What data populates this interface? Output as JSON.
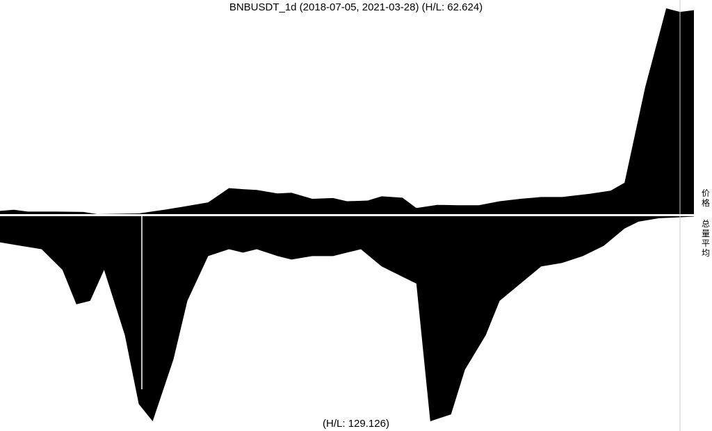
{
  "chart_data": {
    "type": "area",
    "title": "BNBUSDT_1d (2018-07-05, 2021-03-28) (H/L: 62.624)",
    "bottom_label": "(H/L: 129.126)",
    "price_label": "价格",
    "volume_label": "总量平均",
    "colors": {
      "fill": "#000000",
      "background": "#ffffff",
      "divider": "#ffffff",
      "marker_line": "#cccccc"
    },
    "price_series": {
      "name": "价格",
      "x": [
        0,
        2,
        4,
        6,
        8,
        12,
        14,
        17,
        20,
        24,
        27,
        30,
        33,
        35,
        37,
        40,
        42,
        45,
        48,
        50,
        53,
        55,
        58,
        60,
        63,
        66,
        69,
        72,
        75,
        78,
        81,
        85,
        88,
        90,
        93,
        96,
        98,
        100
      ],
      "values": [
        1.1,
        1.4,
        0.9,
        0.9,
        0.9,
        0.8,
        0.2,
        0.3,
        0.4,
        1.5,
        2.5,
        3.5,
        7.5,
        7.2,
        7.0,
        6.0,
        6.2,
        4.5,
        4.7,
        3.8,
        4.0,
        5.2,
        4.8,
        1.9,
        2.8,
        2.7,
        2.7,
        3.8,
        4.5,
        5.0,
        5.0,
        5.9,
        6.8,
        9.0,
        36.0,
        58.0,
        57.0,
        57.5
      ]
    },
    "volume_series": {
      "name": "总量平均",
      "x": [
        0,
        3,
        6,
        9,
        11,
        13,
        15,
        18,
        20,
        22,
        25,
        27,
        30,
        33,
        35,
        37,
        40,
        42,
        45,
        48,
        50,
        52,
        55,
        58,
        60,
        62,
        65,
        67,
        70,
        72,
        75,
        78,
        81,
        84,
        87,
        90,
        92,
        95,
        97,
        100
      ],
      "values": [
        8,
        9,
        10,
        16,
        26,
        25,
        16,
        35,
        55,
        60,
        42,
        25,
        12,
        10,
        11,
        10,
        12,
        13,
        12,
        12,
        11,
        10,
        15,
        18,
        20,
        60,
        58,
        45,
        35,
        25,
        20,
        15,
        14,
        12,
        9,
        4,
        2,
        1,
        0.8,
        0.5
      ]
    },
    "markers": [
      7,
      0
    ]
  }
}
